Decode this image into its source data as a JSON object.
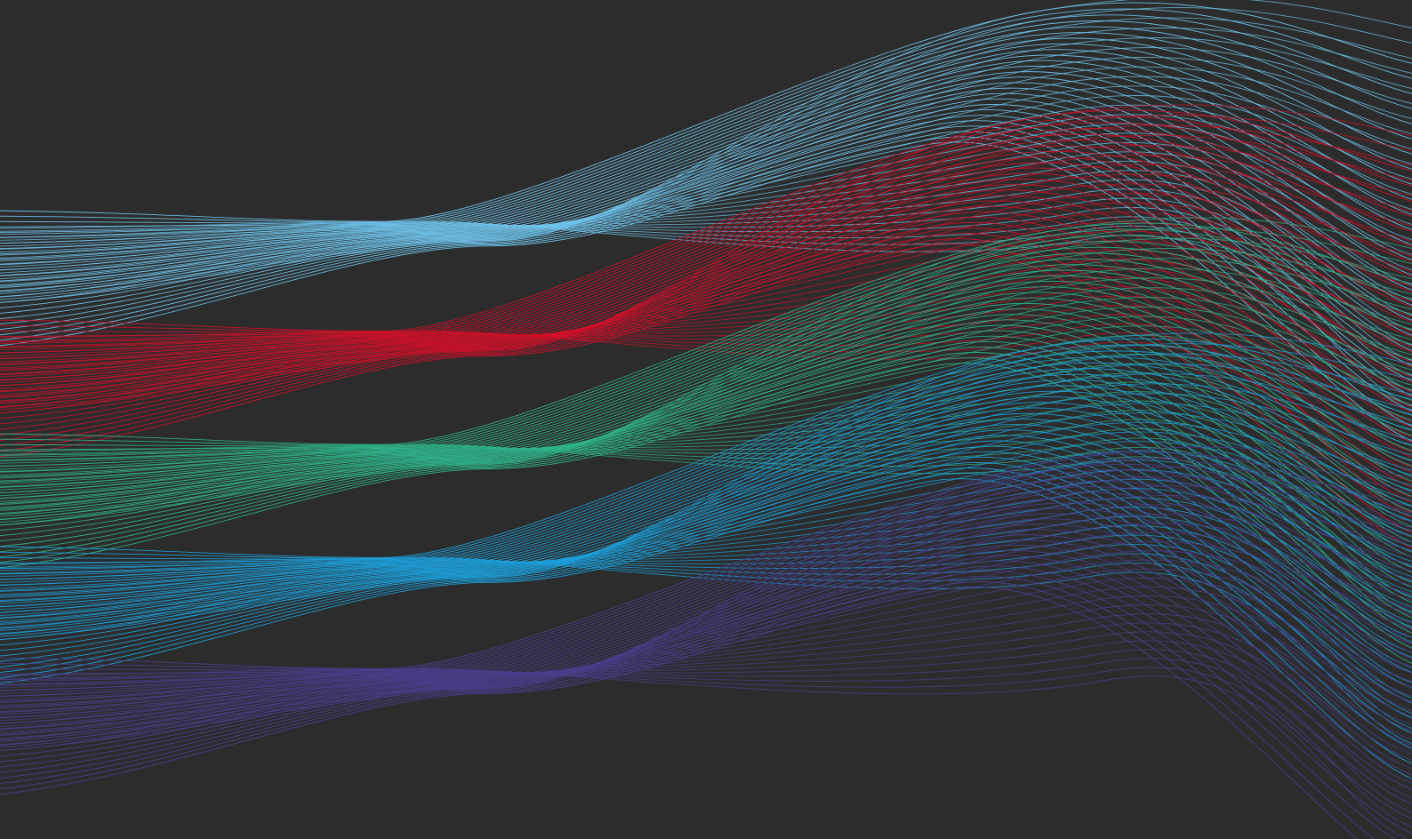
{
  "background_color": "#2c2c2c",
  "artwork": {
    "description_kind": "abstract flowing line waves",
    "bands": [
      {
        "name": "light-blue-band",
        "color": "#6fc3ea",
        "lines": 26
      },
      {
        "name": "red-band",
        "color": "#d0112b",
        "lines": 26
      },
      {
        "name": "green-band",
        "color": "#2fb38a",
        "lines": 26
      },
      {
        "name": "blue-band",
        "color": "#1d9fd9",
        "lines": 26
      },
      {
        "name": "purple-band",
        "color": "#4b3f8f",
        "lines": 26
      }
    ]
  }
}
